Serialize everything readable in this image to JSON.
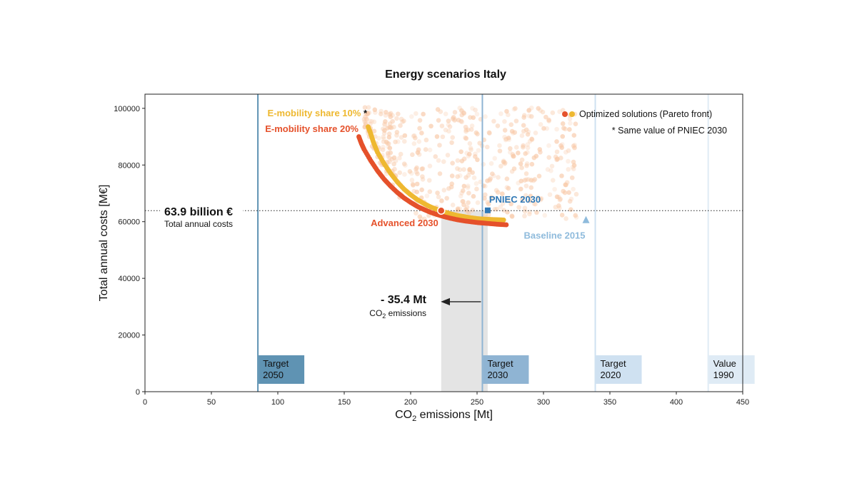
{
  "chart_data": {
    "type": "scatter",
    "title": "Energy scenarios Italy",
    "xlabel_main": "CO",
    "xlabel_sub": "2",
    "xlabel_rest": " emissions [Mt]",
    "ylabel": "Total annual costs [M€]",
    "xlim": [
      0,
      450
    ],
    "ylim": [
      0,
      105000
    ],
    "xticks": [
      0,
      50,
      100,
      150,
      200,
      250,
      300,
      350,
      400,
      450
    ],
    "yticks": [
      0,
      20000,
      40000,
      60000,
      80000,
      100000
    ],
    "grid": false,
    "legend": {
      "placement": "top-right",
      "entries": [
        "Optimized solutions (Pareto front)",
        "* Same value of PNIEC 2030"
      ]
    },
    "colors": {
      "e10": "#eeb830",
      "e20": "#e5512b",
      "cloud": "#f8c9a8",
      "pniec": "#2f78b5",
      "baseline": "#8fbbdc",
      "target2050": "#5f93b3",
      "target2030": "#8fb4d3",
      "target2020": "#cfe1f1",
      "value1990": "#dfebf5",
      "shade": "#e4e4e4"
    },
    "series": [
      {
        "name": "E-mobility share 10%",
        "suffix": " *",
        "points": [
          [
            168,
            93500
          ],
          [
            170,
            91000
          ],
          [
            172,
            88000
          ],
          [
            175,
            84500
          ],
          [
            180,
            80500
          ],
          [
            185,
            77000
          ],
          [
            190,
            74000
          ],
          [
            195,
            71500
          ],
          [
            200,
            69500
          ],
          [
            205,
            67800
          ],
          [
            210,
            66400
          ],
          [
            215,
            65200
          ],
          [
            220,
            64300
          ],
          [
            225,
            63500
          ],
          [
            230,
            62800
          ],
          [
            235,
            62200
          ],
          [
            240,
            61800
          ],
          [
            245,
            61400
          ],
          [
            250,
            61100
          ],
          [
            255,
            60900
          ],
          [
            260,
            60800
          ],
          [
            265,
            60700
          ],
          [
            270,
            60600
          ]
        ]
      },
      {
        "name": "E-mobility share 20%",
        "points": [
          [
            161,
            90000
          ],
          [
            163,
            87500
          ],
          [
            165,
            85500
          ],
          [
            170,
            81500
          ],
          [
            175,
            78000
          ],
          [
            180,
            75000
          ],
          [
            185,
            72500
          ],
          [
            190,
            70300
          ],
          [
            195,
            68400
          ],
          [
            200,
            66800
          ],
          [
            205,
            65400
          ],
          [
            210,
            64300
          ],
          [
            215,
            63300
          ],
          [
            220,
            62500
          ],
          [
            225,
            61800
          ],
          [
            230,
            61200
          ],
          [
            235,
            60700
          ],
          [
            240,
            60300
          ],
          [
            245,
            60000
          ],
          [
            250,
            59700
          ],
          [
            255,
            59500
          ],
          [
            260,
            59300
          ],
          [
            265,
            59100
          ],
          [
            272,
            58900
          ]
        ]
      }
    ],
    "markers": [
      {
        "label": "Advanced 2030",
        "x": 223,
        "y": 63900,
        "shape": "circle"
      },
      {
        "label": "PNIEC 2030",
        "x": 258,
        "y": 64000,
        "shape": "square"
      },
      {
        "label": "Baseline 2015",
        "x": 332,
        "y": 60500,
        "shape": "triangle"
      }
    ],
    "vlines": [
      {
        "x": 85,
        "label_l1": "Target",
        "label_l2": "2050",
        "color_key": "target2050"
      },
      {
        "x": 254,
        "label_l1": "Target",
        "label_l2": "2030",
        "color_key": "target2030"
      },
      {
        "x": 339,
        "label_l1": "Target",
        "label_l2": "2020",
        "color_key": "target2020"
      },
      {
        "x": 424,
        "label_l1": "Value",
        "label_l2": "1990",
        "color_key": "value1990"
      }
    ],
    "hline": {
      "y": 63900,
      "value_label": "63.9 billion €",
      "sub_label": "Total annual costs"
    },
    "shade": {
      "x0": 223,
      "x1": 258
    },
    "reduction": {
      "label": "- 35.4 Mt",
      "sub_main": "CO",
      "sub_sub": "2",
      "sub_rest": " emissions",
      "from_x": 254,
      "to_x": 223,
      "y": 32500
    }
  }
}
